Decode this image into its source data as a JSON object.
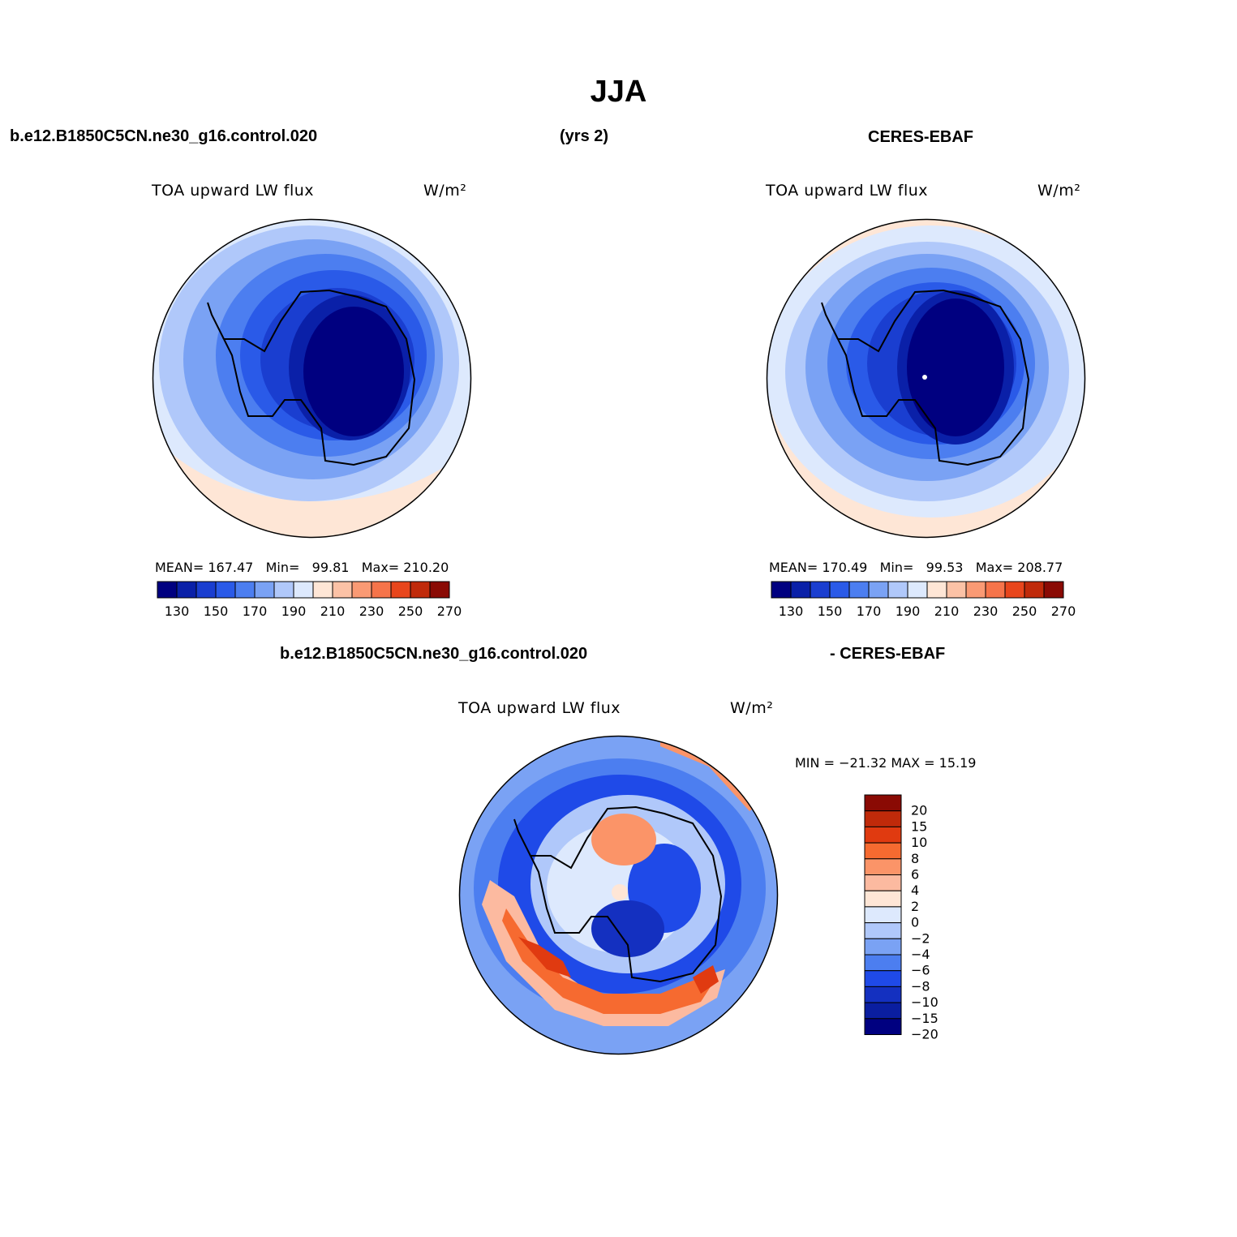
{
  "title": "JJA",
  "header": {
    "case_name": "b.e12.B1850C5CN.ne30_g16.control.020",
    "years": "(yrs 2)",
    "obs_name": "CERES-EBAF"
  },
  "diff_header": {
    "case_name": "b.e12.B1850C5CN.ne30_g16.control.020",
    "obs_name": "- CERES-EBAF"
  },
  "panels": {
    "model": {
      "field_label": "TOA upward LW flux",
      "units": "W/m²",
      "stats": {
        "mean_label": "MEAN=",
        "mean": "167.47",
        "min_label": "Min=",
        "min": "99.81",
        "max_label": "Max=",
        "max": "210.20"
      }
    },
    "obs": {
      "field_label": "TOA upward LW flux",
      "units": "W/m²",
      "stats": {
        "mean_label": "MEAN=",
        "mean": "170.49",
        "min_label": "Min=",
        "min": "99.53",
        "max_label": "Max=",
        "max": "208.77"
      }
    },
    "diff": {
      "field_label": "TOA upward LW flux",
      "units": "W/m²",
      "minmax": "MIN = −21.32 MAX =  15.19"
    }
  },
  "colorbar_main": {
    "colors": [
      "#000080",
      "#0a20a8",
      "#1a3ed0",
      "#2a5ae8",
      "#4c7ef0",
      "#7aa2f4",
      "#b0c8fa",
      "#dde9fd",
      "#fee6d6",
      "#fcc2a6",
      "#fa9a74",
      "#f6744a",
      "#e8461c",
      "#c02a0a",
      "#8a0a04"
    ],
    "tick_labels": [
      "130",
      "150",
      "170",
      "190",
      "210",
      "230",
      "250",
      "270"
    ]
  },
  "colorbar_diff": {
    "colors": [
      "#8a0a04",
      "#c02a0a",
      "#e03a10",
      "#f66a30",
      "#fb9468",
      "#fcbaa0",
      "#fee6d6",
      "#dde9fd",
      "#b0c8fa",
      "#7aa2f4",
      "#4c7ef0",
      "#1f4ae8",
      "#1430c0",
      "#0a1ea0",
      "#000080"
    ],
    "labels": [
      "20",
      "15",
      "10",
      "8",
      "6",
      "4",
      "2",
      "0",
      "−2",
      "−4",
      "−6",
      "−8",
      "−10",
      "−15",
      "−20"
    ]
  }
}
